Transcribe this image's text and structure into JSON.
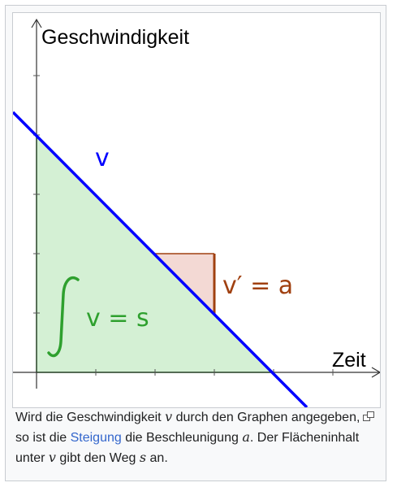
{
  "diagram": {
    "y_axis_label": "Geschwindigkeit",
    "x_axis_label": "Zeit",
    "line_label": "v",
    "slope_label": "v′ = a",
    "integral_text": "v = s",
    "colors": {
      "line": "#0000ff",
      "area_fill": "#d4f0d4",
      "area_edge": "#2ea02e",
      "triangle_fill": "#f3d9d4",
      "triangle_edge": "#a04010",
      "axis": "#333333"
    }
  },
  "caption": {
    "part1": "Wird die Geschwindigkeit ",
    "var_v": "v",
    "part2": " durch den Graphen angegeben, so ist die ",
    "link_text": "Steigung",
    "part3": " die Beschleunigung ",
    "var_a": "a",
    "part4": ". Der Flächeninhalt unter ",
    "var_v2": "v",
    "part5": " gibt den Weg ",
    "var_s": "s",
    "part6": " an."
  },
  "icons": {
    "enlarge": "magnify-clip-icon"
  }
}
